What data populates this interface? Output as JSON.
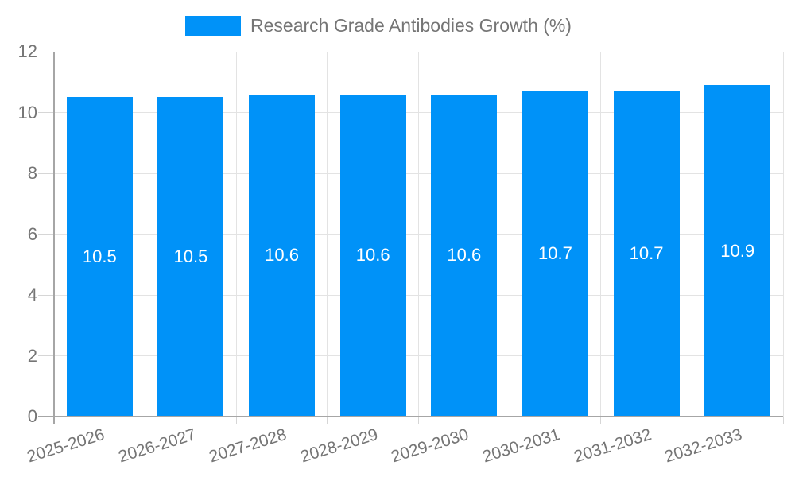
{
  "chart_data": {
    "type": "bar",
    "legend_label": "Research Grade Antibodies Growth (%)",
    "legend_position": "top",
    "categories": [
      "2025-2026",
      "2026-2027",
      "2027-2028",
      "2028-2029",
      "2029-2030",
      "2030-2031",
      "2031-2032",
      "2032-2033"
    ],
    "values": [
      10.5,
      10.5,
      10.6,
      10.6,
      10.6,
      10.7,
      10.7,
      10.9
    ],
    "value_labels": [
      "10.5",
      "10.5",
      "10.6",
      "10.6",
      "10.6",
      "10.7",
      "10.7",
      "10.9"
    ],
    "xlabel": "",
    "ylabel": "",
    "ylim": [
      0,
      12
    ],
    "yticks": [
      0,
      2,
      4,
      6,
      8,
      10,
      12
    ],
    "grid": true,
    "colors": {
      "bar": "#0092f8",
      "axis_line": "#a6a6a6",
      "grid_line": "#e3e3e3",
      "tick_line": "#d6d6d6",
      "label_text": "#757575",
      "bar_label_text": "#ffffff",
      "background": "#ffffff"
    }
  }
}
